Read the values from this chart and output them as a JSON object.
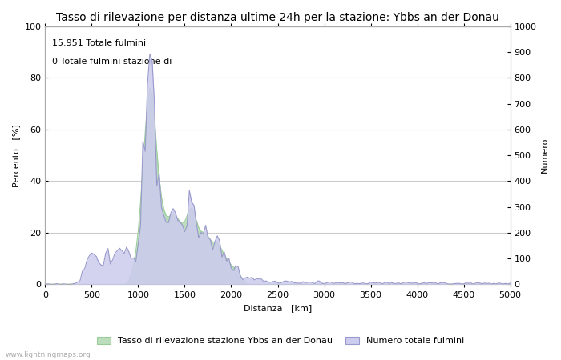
{
  "title": "Tasso di rilevazione per distanza ultime 24h per la stazione: Ybbs an der Donau",
  "xlabel": "Distanza   [km]",
  "ylabel_left": "Percento   [%]",
  "ylabel_right": "Numero",
  "annotation_line1": "15.951 Totale fulmini",
  "annotation_line2": "0 Totale fulmini stazione di",
  "legend_label_green": "Tasso di rilevazione stazione Ybbs an der Donau",
  "legend_label_blue": "Numero totale fulmini",
  "watermark": "www.lightningmaps.org",
  "xlim": [
    0,
    5000
  ],
  "ylim_left": [
    0,
    100
  ],
  "ylim_right": [
    0,
    1000
  ],
  "xticks": [
    0,
    500,
    1000,
    1500,
    2000,
    2500,
    3000,
    3500,
    4000,
    4500,
    5000
  ],
  "yticks_left": [
    0,
    20,
    40,
    60,
    80,
    100
  ],
  "yticks_right": [
    0,
    100,
    200,
    300,
    400,
    500,
    600,
    700,
    800,
    900,
    1000
  ],
  "color_blue_line": "#9999cc",
  "color_blue_fill": "#ccccee",
  "color_green_fill": "#bbddbb",
  "color_green_line": "#99cc99",
  "background_color": "#ffffff",
  "grid_color": "#cccccc",
  "title_fontsize": 10,
  "axis_fontsize": 8,
  "tick_fontsize": 8,
  "legend_fontsize": 8,
  "annotation_fontsize": 8
}
